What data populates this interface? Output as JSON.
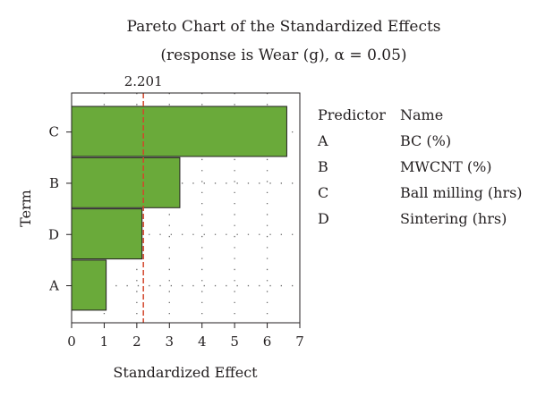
{
  "chart_data": {
    "type": "bar",
    "orientation": "horizontal",
    "title": "Pareto Chart of the Standardized Effects",
    "subtitle": "(response is Wear (g), α = 0.05)",
    "xlabel": "Standardized Effect",
    "ylabel": "Term",
    "categories": [
      "C",
      "B",
      "D",
      "A"
    ],
    "values": [
      6.6,
      3.32,
      2.16,
      1.06
    ],
    "xlim": [
      0,
      7
    ],
    "xticks": [
      "0",
      "1",
      "2",
      "3",
      "4",
      "5",
      "6",
      "7"
    ],
    "reference_line": {
      "value": 2.201,
      "label": "2.201",
      "color": "#d2462c"
    },
    "bar_color": "#6aaa3a",
    "grid": "dotted",
    "legend": {
      "placement": "right",
      "header": [
        "Predictor",
        "Name"
      ],
      "rows": [
        [
          "A",
          "BC (%)"
        ],
        [
          "B",
          "MWCNT (%)"
        ],
        [
          "C",
          "Ball milling (hrs)"
        ],
        [
          "D",
          "Sintering (hrs)"
        ]
      ]
    }
  }
}
